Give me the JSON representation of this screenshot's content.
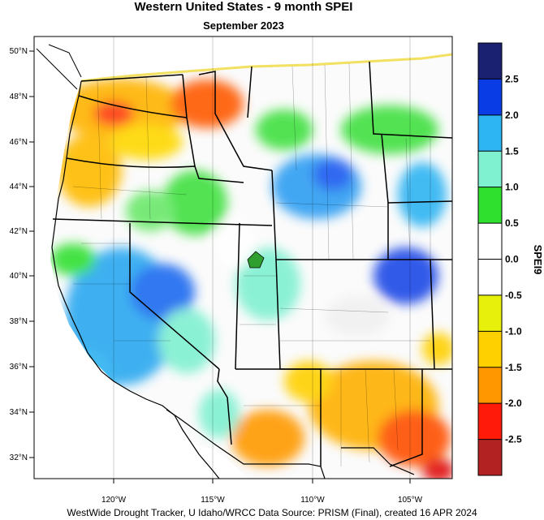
{
  "title": "Western United States - 9 month SPEI",
  "subtitle": "September 2023",
  "footer": "WestWide Drought Tracker, U Idaho/WRCC Data Source: PRISM (Final), created 16 APR 2024",
  "map": {
    "lat_labels": [
      "50°N",
      "48°N",
      "46°N",
      "44°N",
      "42°N",
      "40°N",
      "38°N",
      "36°N",
      "34°N",
      "32°N"
    ],
    "lon_labels": [
      "120°W",
      "115°W",
      "110°W",
      "105°W"
    ]
  },
  "legend": {
    "title": "SPEI9",
    "tick_labels": [
      "2.5",
      "2.0",
      "1.5",
      "1.0",
      "0.5",
      "0.0",
      "-0.5",
      "-1.0",
      "-1.5",
      "-2.0",
      "-2.5"
    ],
    "colors": [
      "#1a2170",
      "#0a3ce6",
      "#2db4f2",
      "#7ff0d0",
      "#2fe02f",
      "#ffffff",
      "#ffffff",
      "#e6f00a",
      "#ffd000",
      "#ff9800",
      "#ff1a0a",
      "#b22222"
    ]
  }
}
